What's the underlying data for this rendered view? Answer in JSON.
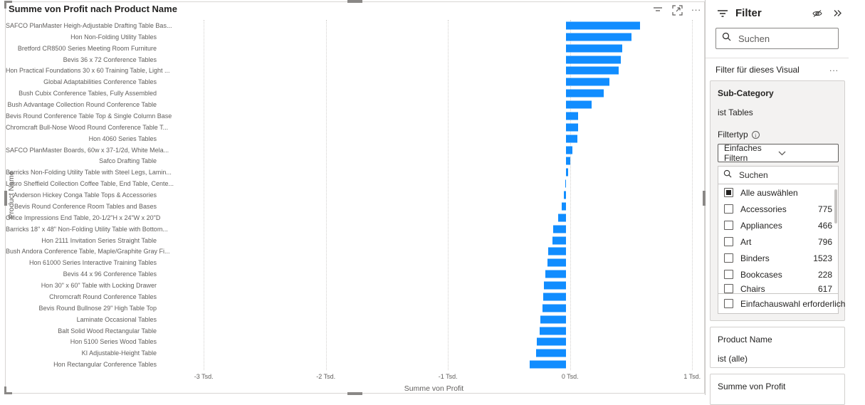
{
  "chart_data": {
    "type": "bar",
    "orientation": "horizontal",
    "title": "Summe von Profit nach Product Name",
    "xlabel": "Summe von Profit",
    "ylabel": "Product Name",
    "xlim": [
      -3310,
      1080
    ],
    "grid": "dotted-vertical",
    "bar_color": "#118DFF",
    "x_ticks": [
      {
        "value": -3000,
        "label": "-3 Tsd."
      },
      {
        "value": -2000,
        "label": "-2 Tsd."
      },
      {
        "value": -1000,
        "label": "-1 Tsd."
      },
      {
        "value": 0,
        "label": "0 Tsd."
      },
      {
        "value": 1000,
        "label": "1 Tsd."
      }
    ],
    "categories": [
      "SAFCO PlanMaster Heigh-Adjustable Drafting Table Bas...",
      "Hon Non-Folding Utility Tables",
      "Bretford CR8500 Series Meeting Room Furniture",
      "Bevis 36 x 72 Conference Tables",
      "Hon Practical Foundations 30 x 60 Training Table, Light ...",
      "Global Adaptabilities Conference Tables",
      "Bush Cubix Conference Tables, Fully Assembled",
      "Bush Advantage Collection Round Conference Table",
      "Bevis Round Conference Table Top & Single Column Base",
      "Chromcraft Bull-Nose Wood Round Conference Table T...",
      "Hon 4060 Series Tables",
      "SAFCO PlanMaster Boards, 60w x 37-1/2d, White Mela...",
      "Safco Drafting Table",
      "Barricks Non-Folding Utility Table with Steel Legs, Lamin...",
      "Lesro Sheffield Collection Coffee Table, End Table, Cente...",
      "Anderson Hickey Conga Table Tops & Accessories",
      "Bevis Round Conference Room Tables and Bases",
      "Office Impressions End Table, 20-1/2\"H x 24\"W x 20\"D",
      "Barricks 18\" x 48\" Non-Folding Utility Table with Bottom...",
      "Hon 2111 Invitation Series Straight Table",
      "Bush Andora Conference Table, Maple/Graphite Gray Fi...",
      "Hon 61000 Series Interactive Training Tables",
      "Bevis 44 x 96 Conference Tables",
      "Hon 30\" x 60\" Table with Locking Drawer",
      "Chromcraft Round Conference Tables",
      "Bevis Round Bullnose 29\" High Table Top",
      "Laminate Occasional Tables",
      "Balt Solid Wood Rectangular Table",
      "Hon 5100 Series Wood Tables",
      "KI Adjustable-Height Table",
      "Hon Rectangular Conference Tables"
    ],
    "values": [
      610,
      540,
      462,
      450,
      430,
      357,
      313,
      212,
      103,
      102,
      97,
      55,
      36,
      18,
      -6,
      -14,
      -36,
      -62,
      -104,
      -111,
      -146,
      -152,
      -168,
      -181,
      -188,
      -191,
      -207,
      -214,
      -236,
      -246,
      -295
    ]
  },
  "visual": {
    "more_options_glyph": "..."
  },
  "filter_pane": {
    "title": "Filter",
    "search_placeholder": "Suchen",
    "section_label": "Filter für dieses Visual",
    "section_more_glyph": "...",
    "subcategory_card": {
      "title": "Sub-Category",
      "summary": "ist Tables",
      "filter_type_label": "Filtertyp",
      "filter_type_value": "Einfaches Filtern",
      "list_search_placeholder": "Suchen",
      "select_all": {
        "label": "Alle auswählen",
        "state": "partial"
      },
      "items": [
        {
          "label": "Accessories",
          "count": "775",
          "checked": false
        },
        {
          "label": "Appliances",
          "count": "466",
          "checked": false
        },
        {
          "label": "Art",
          "count": "796",
          "checked": false
        },
        {
          "label": "Binders",
          "count": "1523",
          "checked": false
        },
        {
          "label": "Bookcases",
          "count": "228",
          "checked": false
        },
        {
          "label": "Chairs",
          "count": "617",
          "checked": false,
          "clipped": true
        }
      ],
      "single_select_label": "Einfachauswahl erforderlich"
    },
    "product_name_card": {
      "title": "Product Name",
      "summary": "ist (alle)"
    },
    "profit_card": {
      "title": "Summe von Profit"
    }
  }
}
